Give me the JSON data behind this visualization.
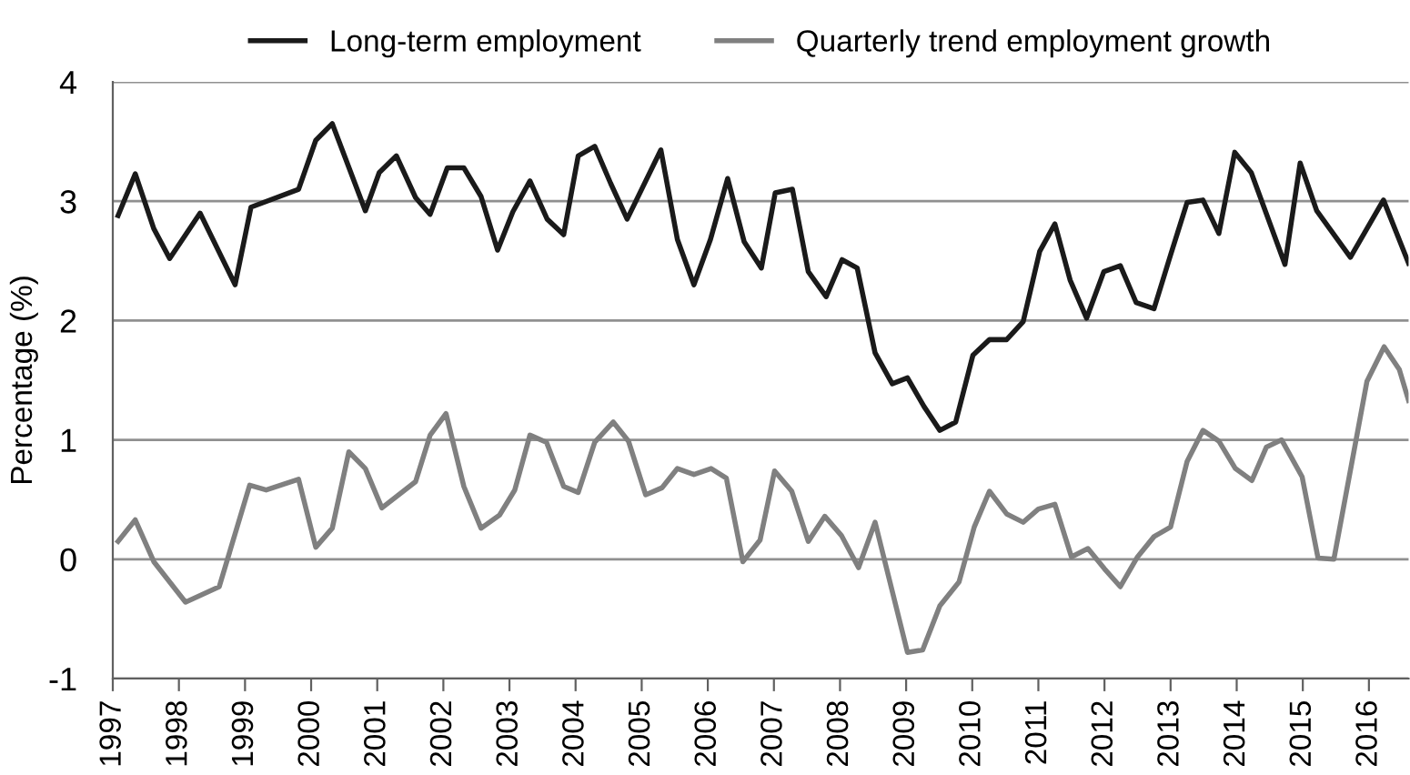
{
  "chart_data": {
    "type": "line",
    "ylabel": "Percentage (%)",
    "xlim": [
      1997,
      2016.6
    ],
    "xticks": [
      1997,
      1998,
      1999,
      2000,
      2001,
      2002,
      2003,
      2004,
      2005,
      2006,
      2007,
      2008,
      2009,
      2010,
      2011,
      2012,
      2013,
      2014,
      2015,
      2016
    ],
    "ylim": [
      -1,
      4
    ],
    "yticks": [
      -1,
      0,
      1,
      2,
      3,
      4
    ],
    "grid": "y",
    "legend": "top",
    "line_style": "solid",
    "marker": "none",
    "series": [
      {
        "name": "Long-term employment",
        "color": "#1a1a1a",
        "x": [
          1997.08,
          1997.34,
          1997.62,
          1997.86,
          1998.32,
          1998.85,
          1999.09,
          1999.81,
          2000.07,
          2000.32,
          2000.82,
          2001.03,
          2001.29,
          2001.58,
          2001.8,
          2002.06,
          2002.31,
          2002.57,
          2002.82,
          2003.05,
          2003.31,
          2003.57,
          2003.82,
          2004.04,
          2004.29,
          2004.53,
          2004.78,
          2005.29,
          2005.54,
          2005.79,
          2006.04,
          2006.3,
          2006.55,
          2006.81,
          2007.02,
          2007.28,
          2007.52,
          2007.79,
          2008.03,
          2008.26,
          2008.53,
          2008.79,
          2009.02,
          2009.27,
          2009.51,
          2009.75,
          2010.01,
          2010.26,
          2010.52,
          2010.77,
          2011.02,
          2011.25,
          2011.48,
          2011.73,
          2011.99,
          2012.24,
          2012.48,
          2012.75,
          2013.0,
          2013.25,
          2013.49,
          2013.73,
          2013.97,
          2014.22,
          2014.73,
          2014.96,
          2015.21,
          2015.72,
          2016.22,
          2016.6
        ],
        "values": [
          2.88,
          3.23,
          2.77,
          2.52,
          2.9,
          2.3,
          2.95,
          3.1,
          3.51,
          3.65,
          2.92,
          3.24,
          3.38,
          3.03,
          2.89,
          3.28,
          3.28,
          3.04,
          2.59,
          2.91,
          3.17,
          2.85,
          2.72,
          3.38,
          3.46,
          3.15,
          2.85,
          3.43,
          2.68,
          2.3,
          2.68,
          3.19,
          2.66,
          2.44,
          3.07,
          3.1,
          2.41,
          2.2,
          2.51,
          2.44,
          1.73,
          1.47,
          1.52,
          1.28,
          1.08,
          1.15,
          1.71,
          1.84,
          1.84,
          1.99,
          2.58,
          2.81,
          2.34,
          2.02,
          2.41,
          2.46,
          2.15,
          2.1,
          2.55,
          2.99,
          3.01,
          2.73,
          3.41,
          3.24,
          2.47,
          3.32,
          2.92,
          2.53,
          3.01,
          2.48
        ]
      },
      {
        "name": "Quarterly trend employment growth",
        "color": "#808080",
        "x": [
          1997.08,
          1997.34,
          1997.62,
          1998.1,
          1998.61,
          1999.07,
          1999.32,
          1999.81,
          2000.07,
          2000.32,
          2000.57,
          2000.82,
          2001.07,
          2001.58,
          2001.8,
          2002.04,
          2002.31,
          2002.57,
          2002.85,
          2003.08,
          2003.31,
          2003.56,
          2003.82,
          2004.04,
          2004.29,
          2004.57,
          2004.8,
          2005.06,
          2005.31,
          2005.54,
          2005.79,
          2006.05,
          2006.28,
          2006.53,
          2006.79,
          2007.01,
          2007.27,
          2007.52,
          2007.77,
          2008.02,
          2008.28,
          2008.53,
          2009.02,
          2009.25,
          2009.51,
          2009.8,
          2010.03,
          2010.26,
          2010.52,
          2010.77,
          2011.0,
          2011.25,
          2011.5,
          2011.75,
          2012.0,
          2012.24,
          2012.5,
          2012.75,
          2013.0,
          2013.25,
          2013.49,
          2013.73,
          2013.98,
          2014.23,
          2014.45,
          2014.68,
          2014.99,
          2015.23,
          2015.47,
          2015.97,
          2016.23,
          2016.46,
          2016.6
        ],
        "values": [
          0.15,
          0.33,
          -0.02,
          -0.36,
          -0.23,
          0.62,
          0.58,
          0.67,
          0.1,
          0.26,
          0.9,
          0.76,
          0.43,
          0.65,
          1.04,
          1.22,
          0.61,
          0.26,
          0.37,
          0.58,
          1.04,
          0.98,
          0.61,
          0.56,
          0.98,
          1.15,
          0.99,
          0.54,
          0.6,
          0.76,
          0.71,
          0.76,
          0.68,
          -0.02,
          0.16,
          0.74,
          0.57,
          0.15,
          0.36,
          0.2,
          -0.07,
          0.31,
          -0.78,
          -0.76,
          -0.39,
          -0.19,
          0.27,
          0.57,
          0.38,
          0.31,
          0.42,
          0.46,
          0.02,
          0.09,
          -0.08,
          -0.23,
          0.02,
          0.19,
          0.27,
          0.82,
          1.08,
          0.99,
          0.76,
          0.66,
          0.94,
          1.0,
          0.69,
          0.01,
          0.0,
          1.49,
          1.78,
          1.59,
          1.33
        ]
      }
    ]
  }
}
